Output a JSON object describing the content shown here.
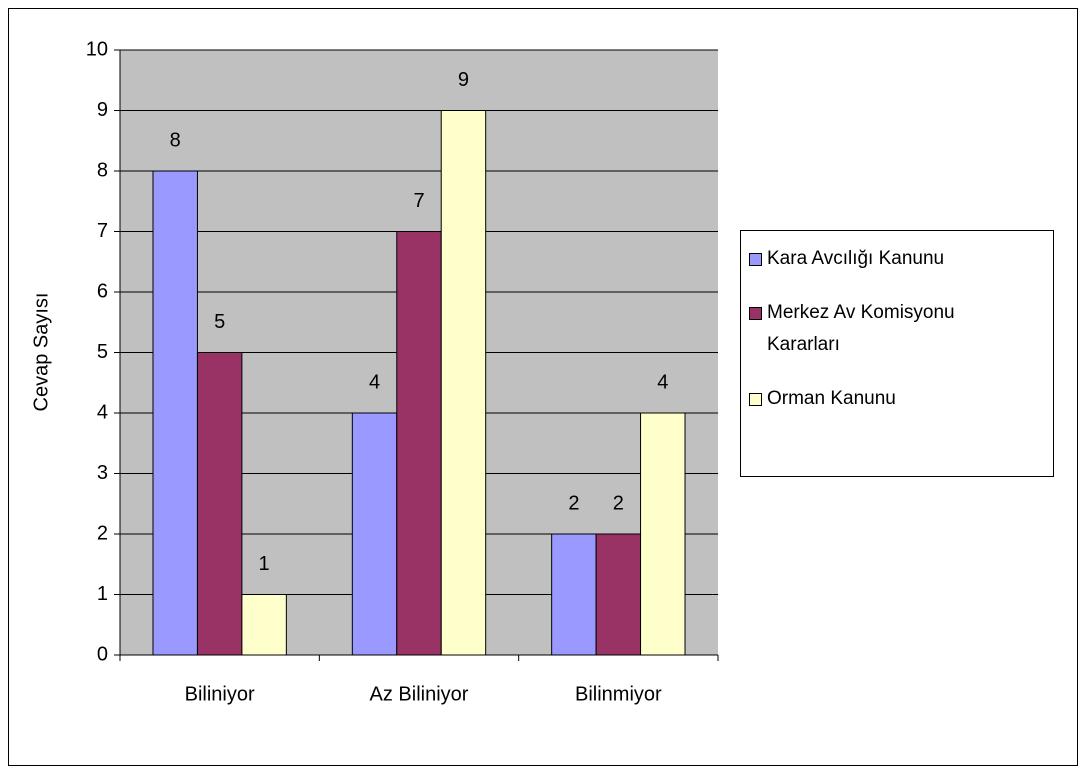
{
  "chart_data": {
    "type": "bar",
    "y_label": "Cevap Sayısı",
    "categories": [
      "Biliniyor",
      "Az Biliniyor",
      "Bilinmiyor"
    ],
    "series": [
      {
        "name": "Kara Avcılığı Kanunu",
        "color": "#9999ff",
        "values": [
          8,
          4,
          2
        ]
      },
      {
        "name": "Merkez Av Komisyonu Kararları",
        "color": "#993366",
        "values": [
          5,
          7,
          2
        ]
      },
      {
        "name": "Orman Kanunu",
        "color": "#ffffcc",
        "values": [
          1,
          9,
          4
        ]
      }
    ],
    "ylim": [
      0,
      10
    ],
    "yticks": [
      0,
      1,
      2,
      3,
      4,
      5,
      6,
      7,
      8,
      9,
      10
    ],
    "grid": true,
    "legend": "right",
    "plot_background": "#c0c0c0"
  }
}
